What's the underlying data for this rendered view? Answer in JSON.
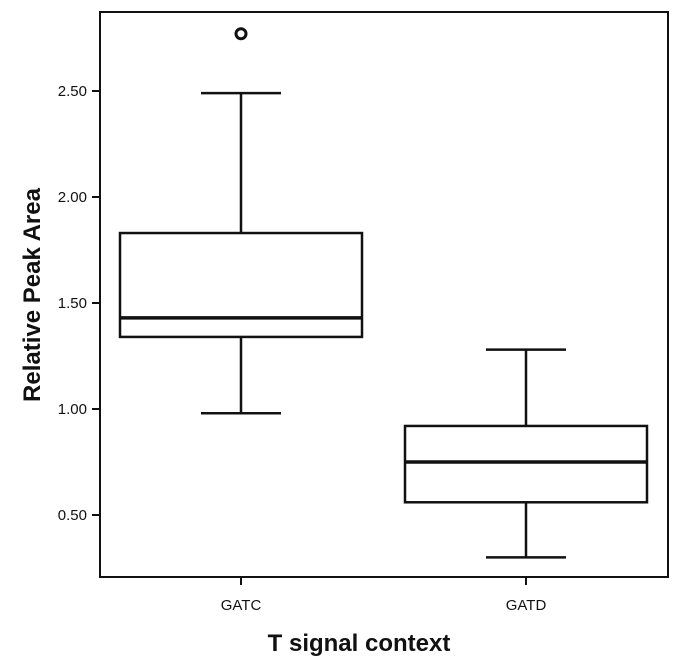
{
  "chart_data": {
    "type": "box",
    "title": "",
    "xlabel": "T signal context",
    "ylabel": "Relative Peak Area",
    "ylim": [
      0.22,
      2.85
    ],
    "yticks": [
      "0.50",
      "1.00",
      "1.50",
      "2.00",
      "2.50"
    ],
    "categories": [
      "GATC",
      "GATD"
    ],
    "boxes": [
      {
        "category": "GATC",
        "whisker_low": 0.98,
        "q1": 1.34,
        "median": 1.43,
        "q3": 1.83,
        "whisker_high": 2.49,
        "outliers": [
          2.77
        ]
      },
      {
        "category": "GATD",
        "whisker_low": 0.3,
        "q1": 0.56,
        "median": 0.75,
        "q3": 0.92,
        "whisker_high": 1.28,
        "outliers": []
      }
    ],
    "grid": false,
    "colors": {
      "line": "#111111",
      "box_fill": "#ffffff",
      "frame": "#111111"
    }
  }
}
